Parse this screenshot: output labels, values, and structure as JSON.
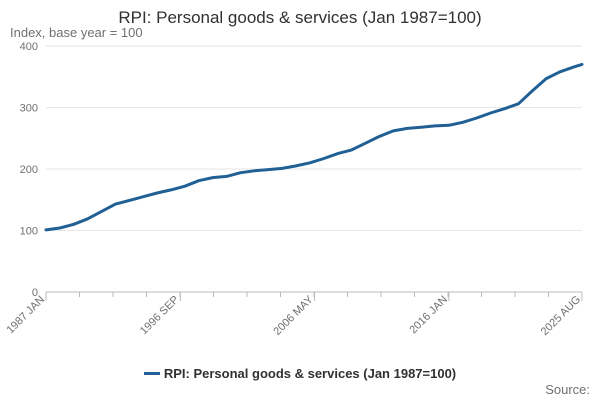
{
  "chart_data": {
    "type": "line",
    "title": "RPI: Personal goods & services (Jan 1987=100)",
    "ylabel": "Index, base year = 100",
    "xlabel": "",
    "ylim": [
      0,
      400
    ],
    "y_ticks": [
      0,
      100,
      200,
      300,
      400
    ],
    "x_tick_labels": [
      "1987 JAN",
      "1996 SEP",
      "2006 MAY",
      "2016 JAN",
      "2025 AUG"
    ],
    "x_tick_years": [
      1987.0,
      1996.67,
      2006.33,
      2016.0,
      2025.58
    ],
    "xlim": [
      1987.0,
      2025.58
    ],
    "series": [
      {
        "name": "RPI: Personal goods & services (Jan 1987=100)",
        "color": "#206095",
        "x": [
          1987.0,
          1988.0,
          1989.0,
          1990.0,
          1991.0,
          1992.0,
          1993.0,
          1994.0,
          1995.0,
          1996.0,
          1997.0,
          1998.0,
          1999.0,
          2000.0,
          2001.0,
          2002.0,
          2003.0,
          2004.0,
          2005.0,
          2006.0,
          2007.0,
          2008.0,
          2009.0,
          2010.0,
          2011.0,
          2012.0,
          2013.0,
          2014.0,
          2015.0,
          2016.0,
          2017.0,
          2018.0,
          2019.0,
          2020.0,
          2021.0,
          2022.0,
          2023.0,
          2024.0,
          2025.0,
          2025.58
        ],
        "values": [
          101,
          104,
          110,
          119,
          131,
          143,
          149,
          155,
          161,
          166,
          172,
          181,
          186,
          188,
          194,
          197,
          199,
          201,
          205,
          210,
          217,
          225,
          231,
          242,
          253,
          262,
          266,
          268,
          270,
          271,
          276,
          283,
          291,
          298,
          306,
          327,
          347,
          358,
          366,
          370
        ]
      }
    ]
  },
  "legend": {
    "label": "RPI: Personal goods & services (Jan 1987=100)"
  },
  "source": {
    "label": "Source:"
  }
}
